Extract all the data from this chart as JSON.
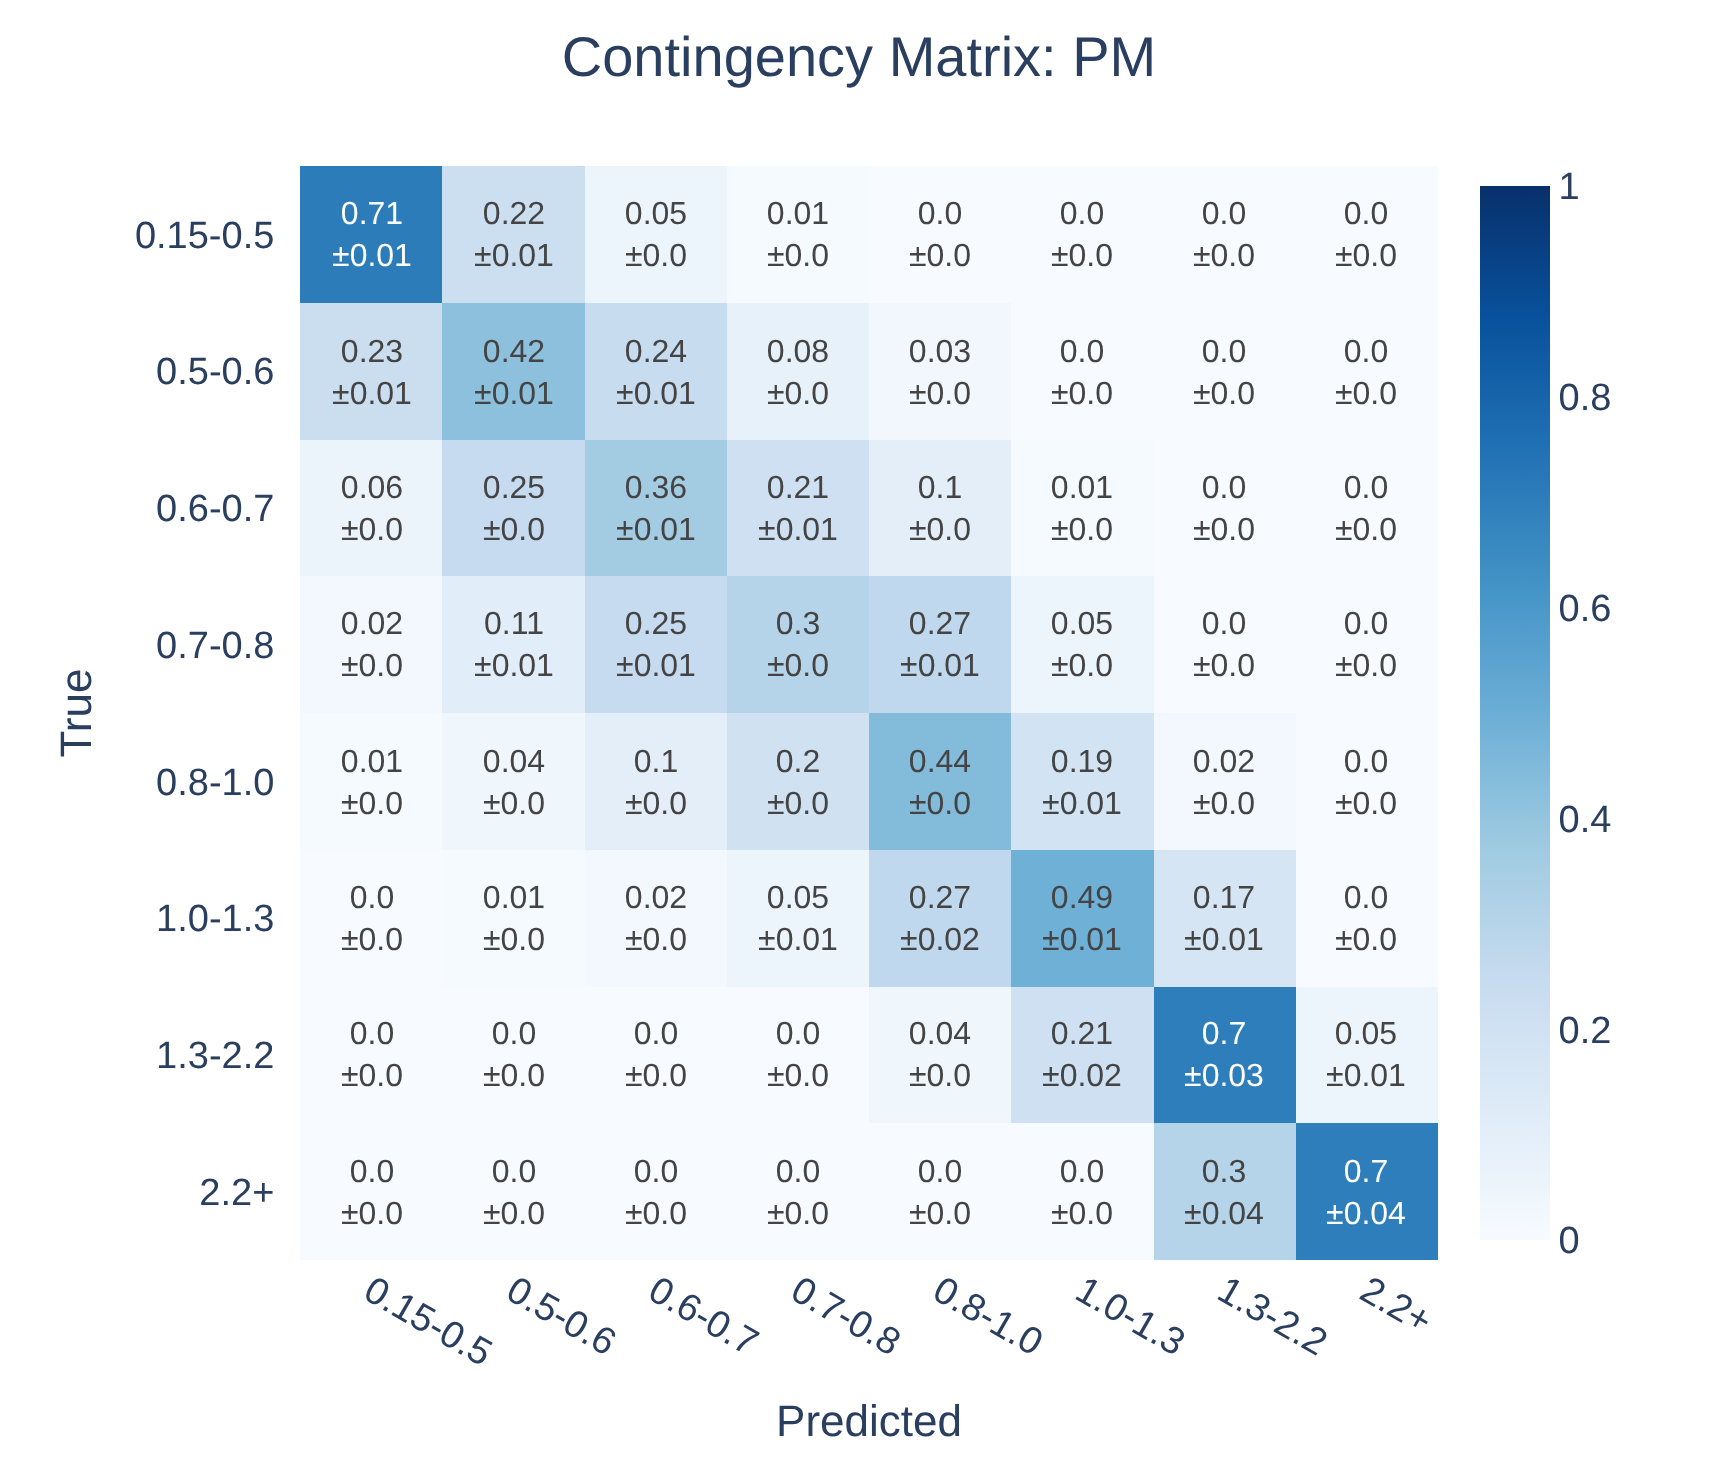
{
  "chart_data": {
    "type": "heatmap",
    "title": "Contingency Matrix: PM",
    "xlabel": "Predicted",
    "ylabel": "True",
    "categories": [
      "0.15-0.5",
      "0.5-0.6",
      "0.6-0.7",
      "0.7-0.8",
      "0.8-1.0",
      "1.0-1.3",
      "1.3-2.2",
      "2.2+"
    ],
    "y_categories": [
      "0.15-0.5",
      "0.5-0.6",
      "0.6-0.7",
      "0.7-0.8",
      "0.8-1.0",
      "1.0-1.3",
      "1.3-2.2",
      "2.2+"
    ],
    "cells": [
      [
        0.71,
        0.22,
        0.05,
        0.01,
        0.0,
        0.0,
        0.0,
        0.0
      ],
      [
        0.23,
        0.42,
        0.24,
        0.08,
        0.03,
        0.0,
        0.0,
        0.0
      ],
      [
        0.06,
        0.25,
        0.36,
        0.21,
        0.1,
        0.01,
        0.0,
        0.0
      ],
      [
        0.02,
        0.11,
        0.25,
        0.3,
        0.27,
        0.05,
        0.0,
        0.0
      ],
      [
        0.01,
        0.04,
        0.1,
        0.2,
        0.44,
        0.19,
        0.02,
        0.0
      ],
      [
        0.0,
        0.01,
        0.02,
        0.05,
        0.27,
        0.49,
        0.17,
        0.0
      ],
      [
        0.0,
        0.0,
        0.0,
        0.0,
        0.04,
        0.21,
        0.7,
        0.05
      ],
      [
        0.0,
        0.0,
        0.0,
        0.0,
        0.0,
        0.0,
        0.3,
        0.7
      ]
    ],
    "cell_labels": [
      [
        "0.71\n±0.01",
        "0.22\n±0.01",
        "0.05\n±0.0",
        "0.01\n±0.0",
        "0.0\n±0.0",
        "0.0\n±0.0",
        "0.0\n±0.0",
        "0.0\n±0.0"
      ],
      [
        "0.23\n±0.01",
        "0.42\n±0.01",
        "0.24\n±0.01",
        "0.08\n±0.0",
        "0.03\n±0.0",
        "0.0\n±0.0",
        "0.0\n±0.0",
        "0.0\n±0.0"
      ],
      [
        "0.06\n±0.0",
        "0.25\n±0.0",
        "0.36\n±0.01",
        "0.21\n±0.01",
        "0.1\n±0.0",
        "0.01\n±0.0",
        "0.0\n±0.0",
        "0.0\n±0.0"
      ],
      [
        "0.02\n±0.0",
        "0.11\n±0.01",
        "0.25\n±0.01",
        "0.3\n±0.0",
        "0.27\n±0.01",
        "0.05\n±0.0",
        "0.0\n±0.0",
        "0.0\n±0.0"
      ],
      [
        "0.01\n±0.0",
        "0.04\n±0.0",
        "0.1\n±0.0",
        "0.2\n±0.0",
        "0.44\n±0.0",
        "0.19\n±0.01",
        "0.02\n±0.0",
        "0.0\n±0.0"
      ],
      [
        "0.0\n±0.0",
        "0.01\n±0.0",
        "0.02\n±0.0",
        "0.05\n±0.01",
        "0.27\n±0.02",
        "0.49\n±0.01",
        "0.17\n±0.01",
        "0.0\n±0.0"
      ],
      [
        "0.0\n±0.0",
        "0.0\n±0.0",
        "0.0\n±0.0",
        "0.0\n±0.0",
        "0.04\n±0.0",
        "0.21\n±0.02",
        "0.7\n±0.03",
        "0.05\n±0.01"
      ],
      [
        "0.0\n±0.0",
        "0.0\n±0.0",
        "0.0\n±0.0",
        "0.0\n±0.0",
        "0.0\n±0.0",
        "0.0\n±0.0",
        "0.3\n±0.04",
        "0.7\n±0.04"
      ]
    ],
    "clim": [
      0,
      1
    ],
    "cticks": [
      0,
      0.2,
      0.4,
      0.6,
      0.8,
      1
    ]
  }
}
